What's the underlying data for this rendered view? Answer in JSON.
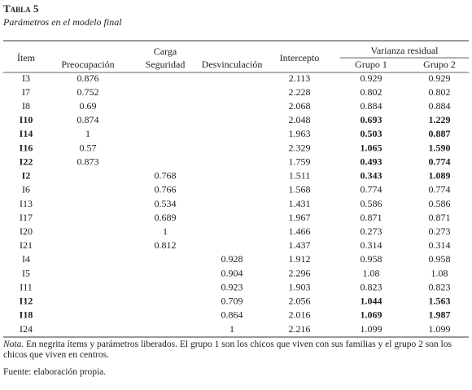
{
  "header": {
    "title": "Tabla 5",
    "subtitle": "Parámetros en el modelo final"
  },
  "table": {
    "columns": {
      "item": "Ítem",
      "preocupacion": "Preocupación",
      "carga": [
        "Carga",
        "Seguridad"
      ],
      "desvinculacion": "Desvinculación",
      "intercepto": "Intercepto",
      "varianza": "Varianza residual",
      "grupo1": "Grupo 1",
      "grupo2": "Grupo 2"
    },
    "rows": [
      {
        "cells": [
          "I3",
          "0.876",
          null,
          null,
          "2.113",
          "0.929",
          "0.929"
        ],
        "bold": false
      },
      {
        "cells": [
          "I7",
          "0.752",
          null,
          null,
          "2.228",
          "0.802",
          "0.802"
        ],
        "bold": false
      },
      {
        "cells": [
          "I8",
          "0.69",
          null,
          null,
          "2.068",
          "0.884",
          "0.884"
        ],
        "bold": false
      },
      {
        "cells": [
          "I10",
          "0.874",
          null,
          null,
          "2.048",
          "0.693",
          "1.229"
        ],
        "bold": true
      },
      {
        "cells": [
          "I14",
          "1",
          null,
          null,
          "1.963",
          "0.503",
          "0.887"
        ],
        "bold": true
      },
      {
        "cells": [
          "I16",
          "0.57",
          null,
          null,
          "2.329",
          "1.065",
          "1.590"
        ],
        "bold": true
      },
      {
        "cells": [
          "I22",
          "0.873",
          null,
          null,
          "1.759",
          "0.493",
          "0.774"
        ],
        "bold": true
      },
      {
        "cells": [
          "I2",
          null,
          "0.768",
          null,
          "1.511",
          "0.343",
          "1.089"
        ],
        "bold": true
      },
      {
        "cells": [
          "I6",
          null,
          "0.766",
          null,
          "1.568",
          "0.774",
          "0.774"
        ],
        "bold": false
      },
      {
        "cells": [
          "I13",
          null,
          "0.534",
          null,
          "1.431",
          "0.586",
          "0.586"
        ],
        "bold": false
      },
      {
        "cells": [
          "I17",
          null,
          "0.689",
          null,
          "1.967",
          "0.871",
          "0.871"
        ],
        "bold": false
      },
      {
        "cells": [
          "I20",
          null,
          "1",
          null,
          "1.466",
          "0.273",
          "0.273"
        ],
        "bold": false
      },
      {
        "cells": [
          "I21",
          null,
          "0.812",
          null,
          "1.437",
          "0.314",
          "0.314"
        ],
        "bold": false
      },
      {
        "cells": [
          "I4",
          null,
          null,
          "0.928",
          "1.912",
          "0.958",
          "0.958"
        ],
        "bold": false
      },
      {
        "cells": [
          "I5",
          null,
          null,
          "0.904",
          "2.296",
          "1.08",
          "1.08"
        ],
        "bold": false
      },
      {
        "cells": [
          "I11",
          null,
          null,
          "0.923",
          "1.903",
          "0.823",
          "0.823"
        ],
        "bold": false
      },
      {
        "cells": [
          "I12",
          null,
          null,
          "0.709",
          "2.056",
          "1.044",
          "1.563"
        ],
        "bold": true
      },
      {
        "cells": [
          "I18",
          null,
          null,
          "0.864",
          "2.016",
          "1.069",
          "1.987"
        ],
        "bold": true
      },
      {
        "cells": [
          "I24",
          null,
          null,
          "1",
          "2.216",
          "1.099",
          "1.099"
        ],
        "bold": false
      }
    ]
  },
  "note": {
    "label": "Nota.",
    "text": "En negrita ítems y parámetros liberados. El grupo 1 son los chicos que viven con sus familias y el grupo 2 son los chicos que viven en centros."
  },
  "source": "Fuente: elaboración propia."
}
